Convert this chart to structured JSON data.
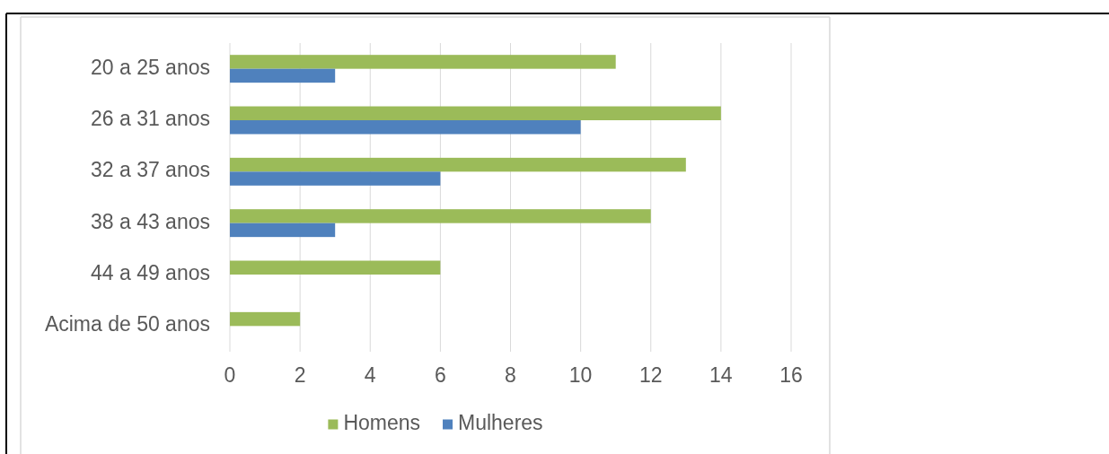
{
  "chart_data": {
    "type": "bar",
    "orientation": "horizontal",
    "categories": [
      "20 a 25 anos",
      "26 a 31 anos",
      "32 a 37 anos",
      "38 a 43 anos",
      "44 a 49 anos",
      "Acima de 50 anos"
    ],
    "series": [
      {
        "name": "Homens",
        "color": "#9bbb59",
        "values": [
          11,
          14,
          13,
          12,
          6,
          2
        ]
      },
      {
        "name": "Mulheres",
        "color": "#4f81bd",
        "values": [
          3,
          10,
          6,
          3,
          null,
          null
        ]
      }
    ],
    "xlim": [
      0,
      16
    ],
    "xticks": [
      0,
      2,
      4,
      6,
      8,
      10,
      12,
      14,
      16
    ],
    "grid": "x",
    "legend": "bottom"
  }
}
